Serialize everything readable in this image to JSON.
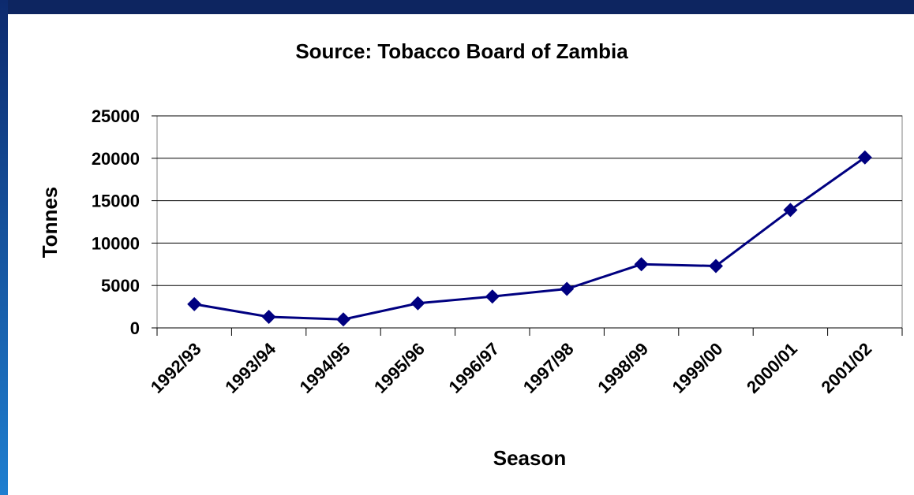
{
  "chart_data": {
    "type": "line",
    "title": "Source: Tobacco Board of Zambia",
    "x_label": "Season",
    "y_label": "Tonnes",
    "categories": [
      "1992/93",
      "1993/94",
      "1994/95",
      "1995/96",
      "1996/97",
      "1997/98",
      "1998/99",
      "1999/00",
      "2000/01",
      "2001/02"
    ],
    "series": [
      {
        "name": "Tonnes",
        "color": "#000080",
        "values": [
          2800,
          1300,
          1000,
          2900,
          3700,
          4600,
          7500,
          7300,
          13900,
          20100
        ]
      }
    ],
    "ylim": [
      0,
      25000
    ],
    "yticks": [
      0,
      5000,
      10000,
      15000,
      20000,
      25000
    ],
    "grid": true
  }
}
